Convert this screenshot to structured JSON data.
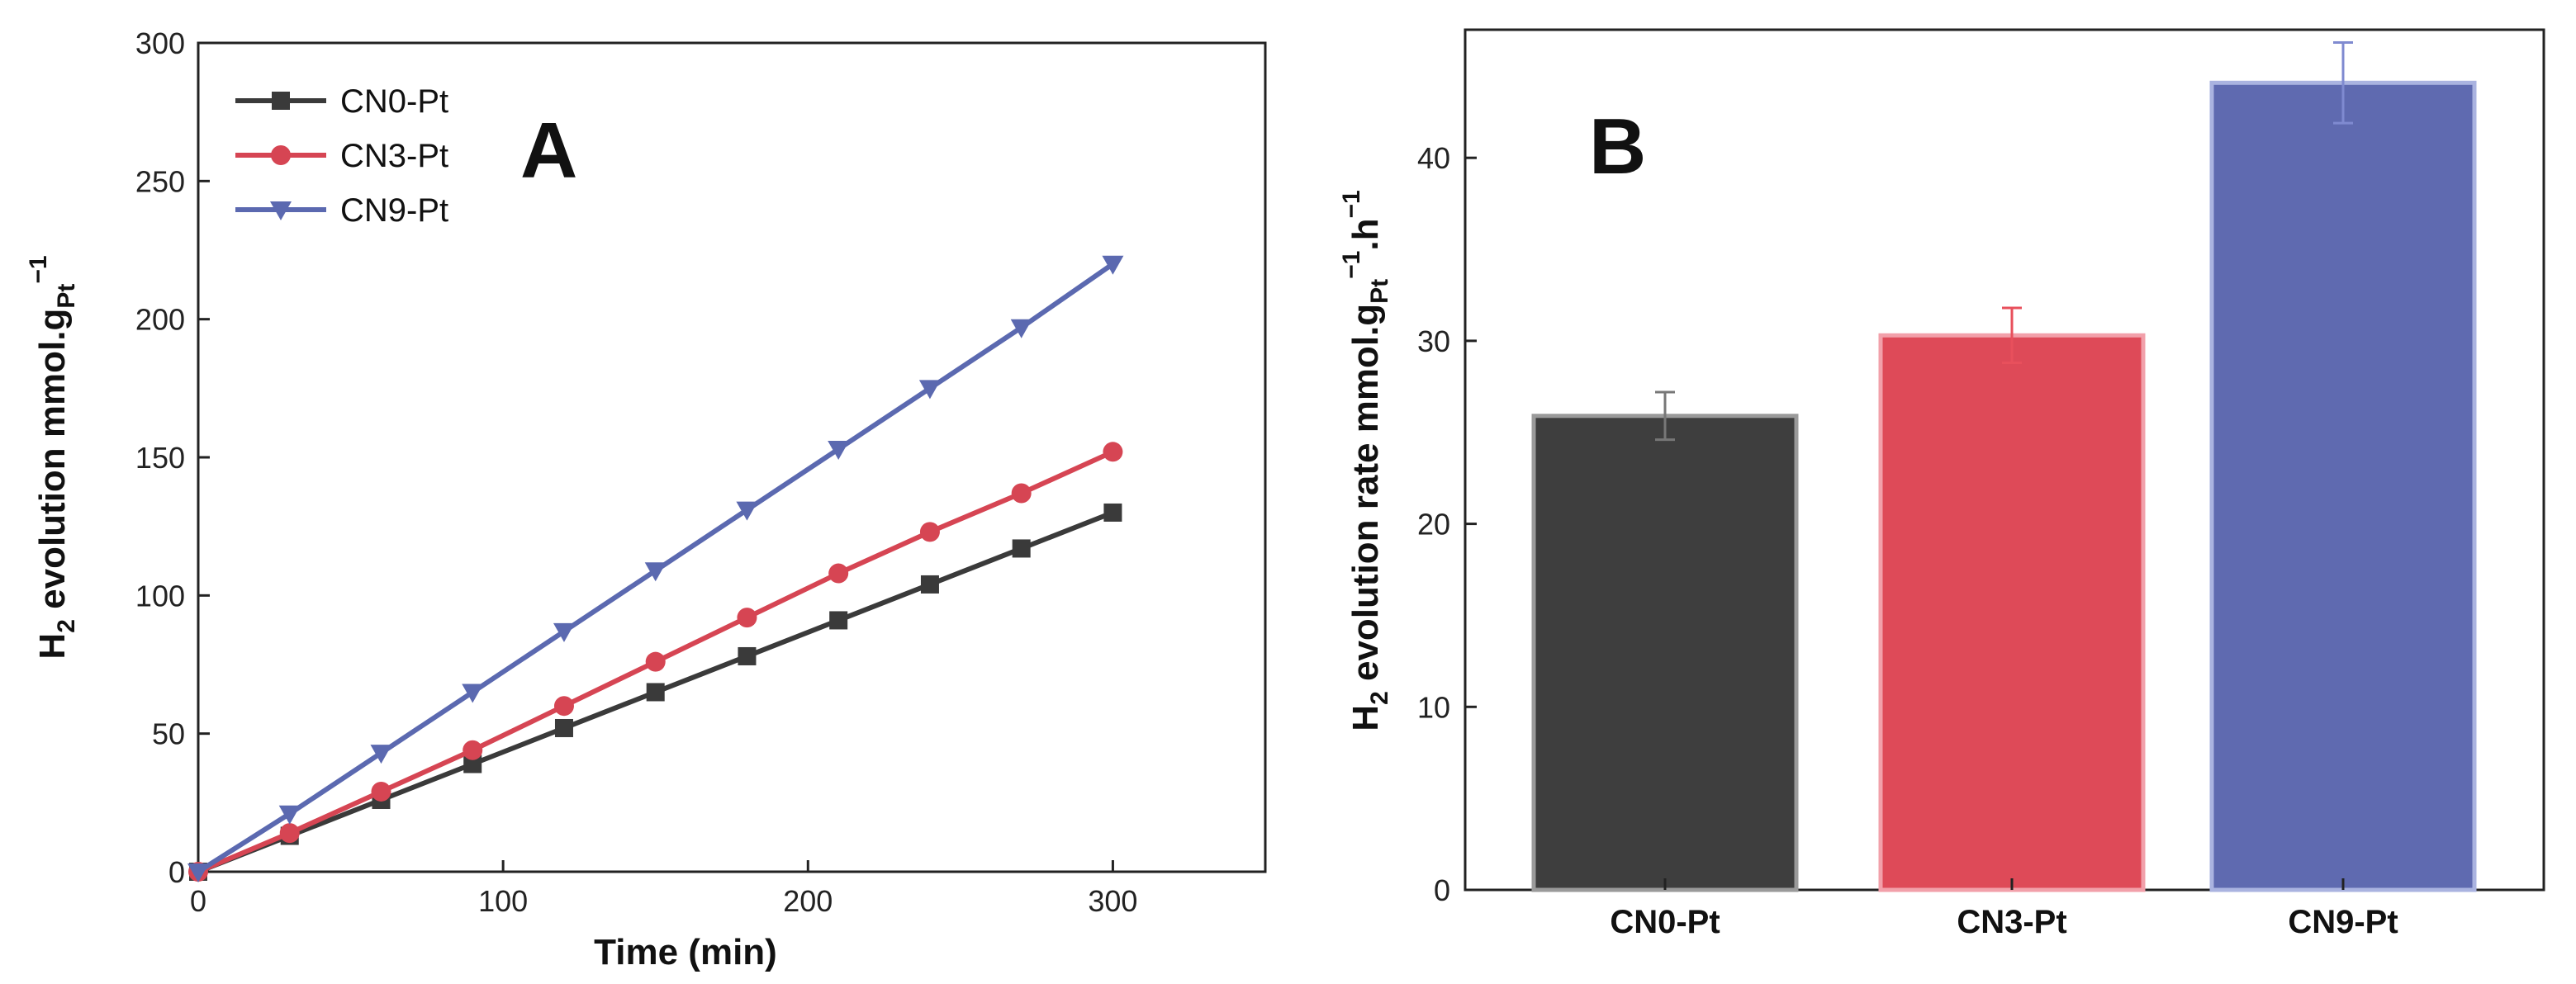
{
  "chart_data": [
    {
      "panel": "A",
      "type": "line",
      "xlabel": "Time (min)",
      "ylabel": {
        "main": "H",
        "sub": "2",
        "rest": " evolution mmol.g",
        "sub2": "Pt",
        "sup": "−1"
      },
      "xlim": [
        0,
        350
      ],
      "ylim": [
        0,
        300
      ],
      "xticks": [
        0,
        100,
        200,
        300
      ],
      "yticks": [
        0,
        50,
        100,
        150,
        200,
        250,
        300
      ],
      "x": [
        0,
        30,
        60,
        90,
        120,
        150,
        180,
        210,
        240,
        270,
        300
      ],
      "series": [
        {
          "name": "CN0-Pt",
          "color": "#3a3a3a",
          "marker": "square",
          "values": [
            0,
            13,
            26,
            39,
            52,
            65,
            78,
            91,
            104,
            117,
            130
          ]
        },
        {
          "name": "CN3-Pt",
          "color": "#d64553",
          "marker": "circle",
          "values": [
            0,
            14,
            29,
            44,
            60,
            76,
            92,
            108,
            123,
            137,
            152
          ]
        },
        {
          "name": "CN9-Pt",
          "color": "#5b69b0",
          "marker": "triangle-down",
          "values": [
            0,
            21,
            43,
            65,
            87,
            109,
            131,
            153,
            175,
            197,
            220
          ]
        }
      ],
      "legend_position": "top-left",
      "grid": false
    },
    {
      "panel": "B",
      "type": "bar",
      "ylabel": {
        "main": "H",
        "sub": "2",
        "rest": " evolution rate mmol.g",
        "sub2": "Pt",
        "sup": "−1",
        "tail": ".h",
        "sup2": "−1"
      },
      "ylim": [
        0,
        47
      ],
      "yticks": [
        0,
        10,
        20,
        30,
        40
      ],
      "categories": [
        "CN0-Pt",
        "CN3-Pt",
        "CN9-Pt"
      ],
      "values": [
        25.9,
        30.3,
        44.1
      ],
      "errors": [
        1.3,
        1.5,
        2.2
      ],
      "colors": [
        "#3e3e3e",
        "#de4a58",
        "#5f6ab0"
      ],
      "edge_colors": [
        "#9a9a9a",
        "#f2a0aa",
        "#aab3e0"
      ],
      "error_colors": [
        "#777777",
        "#e8505c",
        "#7f8ad0"
      ],
      "grid": false
    }
  ]
}
